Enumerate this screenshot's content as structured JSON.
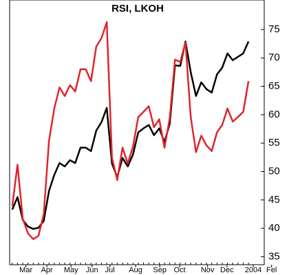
{
  "chart_data": {
    "type": "line",
    "title": "RSI, LKOH",
    "x": [
      0,
      1,
      2,
      3,
      4,
      5,
      6,
      7,
      8,
      9,
      10,
      11,
      12,
      13,
      14,
      15,
      16,
      17,
      18,
      19,
      20,
      21,
      22,
      23,
      24,
      25,
      26,
      27,
      28,
      29,
      30,
      31,
      32,
      33,
      34,
      35,
      36,
      37,
      38,
      39,
      40,
      41,
      42,
      43,
      44,
      45
    ],
    "xlim": [
      -0.5,
      48
    ],
    "xticks": [
      {
        "value": 2.6,
        "label": "Mar"
      },
      {
        "value": 6.6,
        "label": "Apr"
      },
      {
        "value": 11.2,
        "label": "May"
      },
      {
        "value": 15.2,
        "label": "Jun"
      },
      {
        "value": 18.6,
        "label": "Jul"
      },
      {
        "value": 23.5,
        "label": "Aug"
      },
      {
        "value": 28.1,
        "label": "Sep"
      },
      {
        "value": 31.9,
        "label": "Oct"
      },
      {
        "value": 37.2,
        "label": "Nov"
      },
      {
        "value": 40.9,
        "label": "Dec"
      },
      {
        "value": 45.9,
        "label": "2004"
      },
      {
        "value": 49.4,
        "label": "Fel"
      }
    ],
    "ylim": [
      33.6,
      80.2
    ],
    "yticks": [
      35,
      40,
      45,
      50,
      55,
      60,
      65,
      70,
      75
    ],
    "series": [
      {
        "color": "#000000",
        "values": [
          43.3,
          45.5,
          41.5,
          40.3,
          39.9,
          40.1,
          41.3,
          46.6,
          49.4,
          51.5,
          50.9,
          52.0,
          51.5,
          54.2,
          54.2,
          53.6,
          57.2,
          58.7,
          61.2,
          51.4,
          49.0,
          52.4,
          50.9,
          53.0,
          56.9,
          57.6,
          58.2,
          56.4,
          57.6,
          55.2,
          58.4,
          68.7,
          68.6,
          72.9,
          67.5,
          63.3,
          65.7,
          64.5,
          63.9,
          67.1,
          68.3,
          70.8,
          69.6,
          70.2,
          70.8,
          72.9
        ]
      },
      {
        "color": "#e0242b",
        "values": [
          43.9,
          51.2,
          41.7,
          39.1,
          38.1,
          38.7,
          42.5,
          55.4,
          61.1,
          64.8,
          63.3,
          65.2,
          64.1,
          68.0,
          68.0,
          65.9,
          72.0,
          73.5,
          76.3,
          52.4,
          48.5,
          54.2,
          51.4,
          54.4,
          59.6,
          60.5,
          61.5,
          57.8,
          59.2,
          54.2,
          59.4,
          69.7,
          69.3,
          72.7,
          59.6,
          53.4,
          56.3,
          54.6,
          53.6,
          56.9,
          58.2,
          61.1,
          58.8,
          59.6,
          60.5,
          65.9
        ]
      }
    ]
  }
}
